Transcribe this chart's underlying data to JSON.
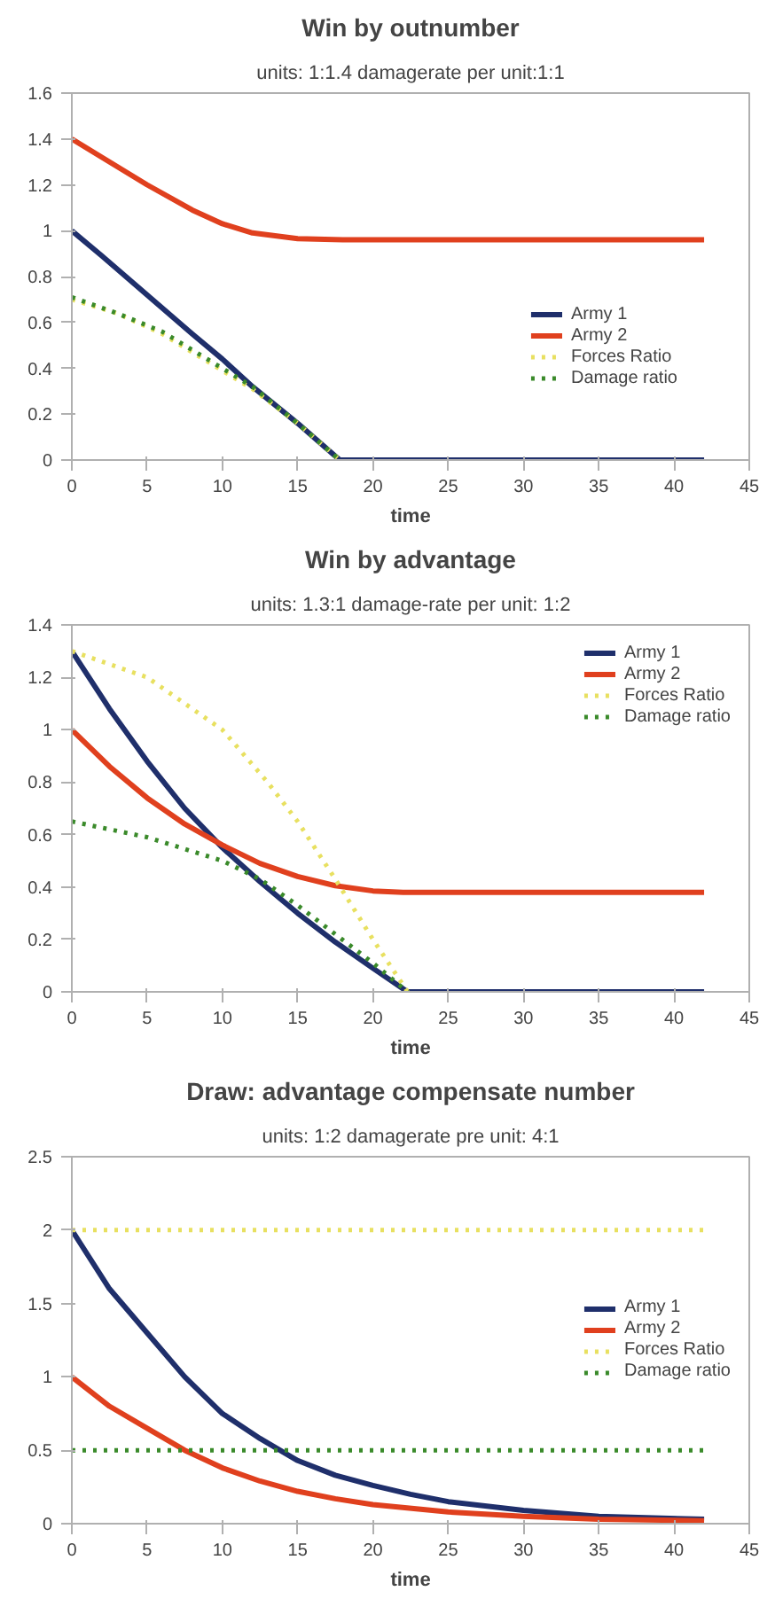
{
  "chart_data": [
    {
      "type": "line",
      "title": "Win by outnumber",
      "subtitle": "units: 1:1.4 damagerate per unit:1:1",
      "xlabel": "time",
      "xlim": [
        0,
        45
      ],
      "xticks": [
        0,
        5,
        10,
        15,
        20,
        25,
        30,
        35,
        40,
        45
      ],
      "ylim": [
        0,
        1.6
      ],
      "yticks": [
        0,
        0.2,
        0.4,
        0.6,
        0.8,
        1,
        1.2,
        1.4,
        1.6
      ],
      "grid": false,
      "legend": "bottom right",
      "series": [
        {
          "name": "Army 1",
          "color": "#1f2f6b",
          "line_style": "solid",
          "x": [
            0,
            2,
            5,
            8,
            10,
            12,
            15,
            17.8,
            42
          ],
          "values": [
            1,
            0.89,
            0.72,
            0.55,
            0.44,
            0.32,
            0.16,
            0,
            0
          ]
        },
        {
          "name": "Army 2",
          "color": "#e0401e",
          "line_style": "solid",
          "x": [
            0,
            2,
            5,
            8,
            10,
            12,
            15,
            18,
            42
          ],
          "values": [
            1.4,
            1.32,
            1.2,
            1.09,
            1.03,
            0.99,
            0.965,
            0.96,
            0.96
          ]
        },
        {
          "name": "Forces Ratio",
          "color": "#e8e060",
          "line_style": "dotted",
          "x": [
            0,
            3,
            6,
            9,
            12,
            15,
            17.8
          ],
          "values": [
            0.7,
            0.64,
            0.55,
            0.43,
            0.31,
            0.16,
            0
          ]
        },
        {
          "name": "Damage ratio",
          "color": "#3a8a2a",
          "line_style": "dotted",
          "x": [
            0,
            3,
            6,
            9,
            12,
            15,
            17.8
          ],
          "values": [
            0.71,
            0.64,
            0.56,
            0.44,
            0.32,
            0.16,
            0
          ]
        }
      ]
    },
    {
      "type": "line",
      "title": "Win by advantage",
      "subtitle": "units: 1.3:1 damage-rate per unit: 1:2",
      "xlabel": "time",
      "xlim": [
        0,
        45
      ],
      "xticks": [
        0,
        5,
        10,
        15,
        20,
        25,
        30,
        35,
        40,
        45
      ],
      "ylim": [
        0,
        1.4
      ],
      "yticks": [
        0,
        0.2,
        0.4,
        0.6,
        0.8,
        1,
        1.2,
        1.4
      ],
      "grid": false,
      "legend": "top right",
      "series": [
        {
          "name": "Army 1",
          "color": "#1f2f6b",
          "line_style": "solid",
          "x": [
            0,
            2.5,
            5,
            7.5,
            10,
            12.5,
            15,
            17.5,
            20,
            22.3,
            42
          ],
          "values": [
            1.3,
            1.08,
            0.88,
            0.7,
            0.55,
            0.42,
            0.3,
            0.19,
            0.09,
            0,
            0
          ]
        },
        {
          "name": "Army 2",
          "color": "#e0401e",
          "line_style": "solid",
          "x": [
            0,
            2.5,
            5,
            7.5,
            10,
            12.5,
            15,
            17.5,
            20,
            22,
            42
          ],
          "values": [
            1,
            0.86,
            0.74,
            0.64,
            0.56,
            0.49,
            0.44,
            0.405,
            0.385,
            0.38,
            0.38
          ]
        },
        {
          "name": "Forces Ratio",
          "color": "#e8e060",
          "line_style": "dotted",
          "x": [
            0,
            5,
            10,
            13,
            15,
            17.5,
            20,
            22.3
          ],
          "values": [
            1.3,
            1.2,
            1,
            0.8,
            0.65,
            0.43,
            0.2,
            0
          ]
        },
        {
          "name": "Damage ratio",
          "color": "#3a8a2a",
          "line_style": "dotted",
          "x": [
            0,
            5,
            10,
            12.5,
            15,
            17.5,
            20,
            22.3
          ],
          "values": [
            0.65,
            0.59,
            0.5,
            0.43,
            0.33,
            0.22,
            0.11,
            0
          ]
        }
      ]
    },
    {
      "type": "line",
      "title": "Draw: advantage compensate number",
      "subtitle": "units: 1:2 damagerate pre unit: 4:1",
      "xlabel": "time",
      "xlim": [
        0,
        45
      ],
      "xticks": [
        0,
        5,
        10,
        15,
        20,
        25,
        30,
        35,
        40,
        45
      ],
      "ylim": [
        0,
        2.5
      ],
      "yticks": [
        0,
        0.5,
        1,
        1.5,
        2,
        2.5
      ],
      "grid": false,
      "legend": "right",
      "series": [
        {
          "name": "Army 1",
          "color": "#1f2f6b",
          "line_style": "solid",
          "x": [
            0,
            2.5,
            5,
            7.5,
            10,
            12.5,
            15,
            17.5,
            20,
            22.5,
            25,
            30,
            35,
            42
          ],
          "values": [
            2,
            1.6,
            1.3,
            1,
            0.75,
            0.58,
            0.43,
            0.33,
            0.26,
            0.2,
            0.15,
            0.09,
            0.05,
            0.03
          ]
        },
        {
          "name": "Army 2",
          "color": "#e0401e",
          "line_style": "solid",
          "x": [
            0,
            2.5,
            5,
            7.5,
            10,
            12.5,
            15,
            17.5,
            20,
            25,
            30,
            35,
            42
          ],
          "values": [
            1,
            0.8,
            0.65,
            0.5,
            0.38,
            0.29,
            0.22,
            0.17,
            0.13,
            0.08,
            0.05,
            0.03,
            0.02
          ]
        },
        {
          "name": "Forces Ratio",
          "color": "#e8e060",
          "line_style": "dotted",
          "x": [
            0,
            42
          ],
          "values": [
            2,
            2
          ]
        },
        {
          "name": "Damage ratio",
          "color": "#3a8a2a",
          "line_style": "dotted",
          "x": [
            0,
            42
          ],
          "values": [
            0.5,
            0.5
          ]
        }
      ]
    }
  ]
}
